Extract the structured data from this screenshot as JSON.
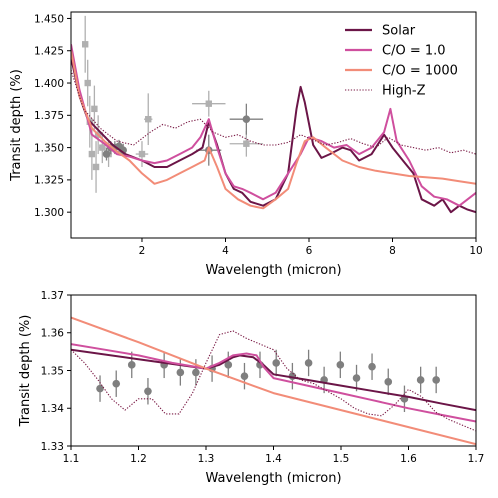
{
  "colors": {
    "solar": "#6b1547",
    "co1": "#cf4f9e",
    "co1000": "#f28c78",
    "highz": "#7a1a45",
    "data_top": "#b0b0b0",
    "data_top_dark": "#808080",
    "data_bottom": "#7f7f7f"
  },
  "chart_data": [
    {
      "type": "line",
      "panel": "top",
      "xlabel": "Wavelength (micron)",
      "ylabel": "Transit depth (%)",
      "xlim": [
        0.3,
        10
      ],
      "ylim": [
        1.28,
        1.455
      ],
      "xticks": [
        2,
        4,
        6,
        8,
        10
      ],
      "xtick_labels": [
        "2",
        "4",
        "6",
        "8",
        "10"
      ],
      "yticks": [
        1.3,
        1.325,
        1.35,
        1.375,
        1.4,
        1.425,
        1.45
      ],
      "ytick_labels": [
        "1.300",
        "1.325",
        "1.350",
        "1.375",
        "1.400",
        "1.425",
        "1.450"
      ],
      "legend_position": "upper-right",
      "legend": [
        "Solar",
        "C/O = 1.0",
        "C/O = 1000",
        "High-Z"
      ],
      "series": [
        {
          "name": "Solar",
          "color_key": "solar",
          "style": "solid",
          "x": [
            0.3,
            0.5,
            0.7,
            1.0,
            1.3,
            1.6,
            2.0,
            2.3,
            2.6,
            2.9,
            3.2,
            3.45,
            3.6,
            3.8,
            4.0,
            4.2,
            4.4,
            4.6,
            4.9,
            5.2,
            5.5,
            5.7,
            5.8,
            5.9,
            6.1,
            6.3,
            6.5,
            6.8,
            7.0,
            7.2,
            7.5,
            7.8,
            8.0,
            8.3,
            8.5,
            8.7,
            9.0,
            9.2,
            9.4,
            9.6,
            9.8,
            10.0
          ],
          "y": [
            1.42,
            1.39,
            1.372,
            1.362,
            1.352,
            1.345,
            1.34,
            1.335,
            1.335,
            1.34,
            1.345,
            1.35,
            1.37,
            1.352,
            1.33,
            1.318,
            1.315,
            1.308,
            1.305,
            1.31,
            1.33,
            1.38,
            1.397,
            1.385,
            1.352,
            1.342,
            1.345,
            1.35,
            1.348,
            1.34,
            1.345,
            1.36,
            1.35,
            1.338,
            1.33,
            1.31,
            1.305,
            1.31,
            1.3,
            1.305,
            1.302,
            1.3
          ]
        },
        {
          "name": "C/O = 1.0",
          "color_key": "co1",
          "style": "solid",
          "x": [
            0.3,
            0.5,
            0.8,
            1.1,
            1.4,
            1.7,
            2.0,
            2.3,
            2.6,
            2.9,
            3.2,
            3.4,
            3.6,
            3.8,
            4.0,
            4.2,
            4.4,
            4.6,
            4.9,
            5.2,
            5.5,
            5.8,
            6.0,
            6.3,
            6.6,
            6.9,
            7.2,
            7.5,
            7.8,
            7.95,
            8.1,
            8.4,
            8.7,
            9.0,
            9.3,
            9.6,
            9.8,
            10.0
          ],
          "y": [
            1.43,
            1.395,
            1.36,
            1.353,
            1.345,
            1.343,
            1.34,
            1.338,
            1.34,
            1.345,
            1.35,
            1.358,
            1.372,
            1.35,
            1.33,
            1.32,
            1.318,
            1.315,
            1.31,
            1.315,
            1.33,
            1.345,
            1.358,
            1.355,
            1.35,
            1.352,
            1.345,
            1.35,
            1.362,
            1.38,
            1.355,
            1.34,
            1.32,
            1.312,
            1.31,
            1.305,
            1.31,
            1.315
          ]
        },
        {
          "name": "C/O = 1000",
          "color_key": "co1000",
          "style": "solid",
          "x": [
            0.3,
            0.5,
            0.8,
            1.1,
            1.4,
            1.7,
            2.0,
            2.3,
            2.6,
            2.9,
            3.2,
            3.5,
            3.6,
            3.8,
            4.0,
            4.3,
            4.6,
            4.9,
            5.2,
            5.5,
            5.7,
            5.9,
            6.1,
            6.4,
            6.8,
            7.2,
            7.6,
            8.0,
            8.4,
            8.8,
            9.2,
            9.6,
            10.0
          ],
          "y": [
            1.425,
            1.39,
            1.365,
            1.355,
            1.347,
            1.34,
            1.33,
            1.322,
            1.325,
            1.33,
            1.335,
            1.34,
            1.35,
            1.335,
            1.318,
            1.31,
            1.305,
            1.303,
            1.31,
            1.318,
            1.338,
            1.355,
            1.358,
            1.35,
            1.34,
            1.335,
            1.332,
            1.33,
            1.328,
            1.327,
            1.326,
            1.324,
            1.322
          ]
        },
        {
          "name": "High-Z",
          "color_key": "highz",
          "style": "dotted",
          "x": [
            0.3,
            0.6,
            1.0,
            1.4,
            1.8,
            2.2,
            2.5,
            2.8,
            3.1,
            3.4,
            3.7,
            4.0,
            4.3,
            4.6,
            4.9,
            5.2,
            5.5,
            5.8,
            6.1,
            6.4,
            6.7,
            7.0,
            7.3,
            7.6,
            7.9,
            8.2,
            8.5,
            8.8,
            9.1,
            9.4,
            9.7,
            10.0
          ],
          "y": [
            1.41,
            1.38,
            1.365,
            1.355,
            1.352,
            1.362,
            1.368,
            1.365,
            1.37,
            1.372,
            1.362,
            1.358,
            1.36,
            1.355,
            1.352,
            1.352,
            1.354,
            1.36,
            1.356,
            1.352,
            1.354,
            1.357,
            1.353,
            1.35,
            1.358,
            1.352,
            1.35,
            1.348,
            1.35,
            1.346,
            1.348,
            1.345
          ]
        }
      ],
      "observations": [
        {
          "x": 0.64,
          "y": 1.43,
          "xerr": 0.06,
          "yerr": 0.022,
          "marker": "square",
          "color_key": "data_top"
        },
        {
          "x": 0.7,
          "y": 1.4,
          "xerr": 0.06,
          "yerr": 0.018,
          "marker": "square",
          "color_key": "data_top"
        },
        {
          "x": 0.75,
          "y": 1.37,
          "xerr": 0.06,
          "yerr": 0.02,
          "marker": "square",
          "color_key": "data_top"
        },
        {
          "x": 0.8,
          "y": 1.345,
          "xerr": 0.05,
          "yerr": 0.02,
          "marker": "square",
          "color_key": "data_top"
        },
        {
          "x": 0.86,
          "y": 1.38,
          "xerr": 0.06,
          "yerr": 0.018,
          "marker": "square",
          "color_key": "data_top"
        },
        {
          "x": 0.9,
          "y": 1.335,
          "xerr": 0.06,
          "yerr": 0.02,
          "marker": "square",
          "color_key": "data_top"
        },
        {
          "x": 0.95,
          "y": 1.36,
          "xerr": 0.06,
          "yerr": 0.015,
          "marker": "square",
          "color_key": "data_top"
        },
        {
          "x": 1.05,
          "y": 1.35,
          "xerr": 0.08,
          "yerr": 0.012,
          "marker": "square",
          "color_key": "data_top"
        },
        {
          "x": 1.2,
          "y": 1.345,
          "xerr": 0.08,
          "yerr": 0.01,
          "marker": "square",
          "color_key": "data_top"
        },
        {
          "x": 2.0,
          "y": 1.345,
          "xerr": 0.15,
          "yerr": 0.01,
          "marker": "square",
          "color_key": "data_top"
        },
        {
          "x": 2.15,
          "y": 1.372,
          "xerr": 0.1,
          "yerr": 0.02,
          "marker": "square",
          "color_key": "data_top"
        },
        {
          "x": 3.6,
          "y": 1.384,
          "xerr": 0.4,
          "yerr": 0.01,
          "marker": "square",
          "color_key": "data_top"
        },
        {
          "x": 4.5,
          "y": 1.353,
          "xerr": 0.4,
          "yerr": 0.01,
          "marker": "square",
          "color_key": "data_top"
        },
        {
          "x": 3.6,
          "y": 1.348,
          "xerr": 0.3,
          "yerr": 0.012,
          "marker": "circle",
          "color_key": "data_top_dark"
        },
        {
          "x": 4.5,
          "y": 1.372,
          "xerr": 0.4,
          "yerr": 0.012,
          "marker": "circle",
          "color_key": "data_top_dark"
        },
        {
          "x": 1.15,
          "y": 1.345,
          "xerr": 0.0,
          "yerr": 0.005,
          "marker": "circle",
          "color_key": "data_top_dark"
        },
        {
          "x": 1.25,
          "y": 1.35,
          "xerr": 0.0,
          "yerr": 0.005,
          "marker": "circle",
          "color_key": "data_top_dark"
        },
        {
          "x": 1.35,
          "y": 1.35,
          "xerr": 0.0,
          "yerr": 0.005,
          "marker": "circle",
          "color_key": "data_top_dark"
        },
        {
          "x": 1.45,
          "y": 1.351,
          "xerr": 0.0,
          "yerr": 0.005,
          "marker": "circle",
          "color_key": "data_top_dark"
        },
        {
          "x": 1.55,
          "y": 1.348,
          "xerr": 0.0,
          "yerr": 0.005,
          "marker": "circle",
          "color_key": "data_top_dark"
        }
      ]
    },
    {
      "type": "line",
      "panel": "bottom",
      "xlabel": "Wavelength (micron)",
      "ylabel": "Transit depth (%)",
      "xlim": [
        1.1,
        1.7
      ],
      "ylim": [
        1.33,
        1.37
      ],
      "xticks": [
        1.1,
        1.2,
        1.3,
        1.4,
        1.5,
        1.6,
        1.7
      ],
      "xtick_labels": [
        "1.1",
        "1.2",
        "1.3",
        "1.4",
        "1.5",
        "1.6",
        "1.7"
      ],
      "yticks": [
        1.33,
        1.34,
        1.35,
        1.36,
        1.37
      ],
      "ytick_labels": [
        "1.33",
        "1.34",
        "1.35",
        "1.36",
        "1.37"
      ],
      "series": [
        {
          "name": "Solar",
          "color_key": "solar",
          "style": "solid",
          "x": [
            1.1,
            1.2,
            1.3,
            1.32,
            1.34,
            1.35,
            1.37,
            1.385,
            1.4,
            1.45,
            1.5,
            1.55,
            1.6,
            1.65,
            1.7
          ],
          "y": [
            1.3555,
            1.353,
            1.3505,
            1.3515,
            1.3535,
            1.354,
            1.3535,
            1.3515,
            1.349,
            1.3475,
            1.346,
            1.3445,
            1.343,
            1.3412,
            1.3395
          ]
        },
        {
          "name": "C/O = 1.0",
          "color_key": "co1",
          "style": "solid",
          "x": [
            1.1,
            1.15,
            1.2,
            1.25,
            1.3,
            1.32,
            1.34,
            1.36,
            1.375,
            1.385,
            1.4,
            1.45,
            1.5,
            1.55,
            1.6,
            1.65,
            1.7
          ],
          "y": [
            1.357,
            1.3555,
            1.354,
            1.352,
            1.3505,
            1.352,
            1.354,
            1.3545,
            1.354,
            1.351,
            1.348,
            1.346,
            1.344,
            1.342,
            1.34,
            1.3382,
            1.3365
          ]
        },
        {
          "name": "C/O = 1000",
          "color_key": "co1000",
          "style": "solid",
          "x": [
            1.1,
            1.2,
            1.3,
            1.4,
            1.5,
            1.6,
            1.7
          ],
          "y": [
            1.364,
            1.3575,
            1.3505,
            1.344,
            1.3395,
            1.335,
            1.3305
          ]
        },
        {
          "name": "High-Z",
          "color_key": "highz",
          "style": "dotted",
          "x": [
            1.1,
            1.12,
            1.14,
            1.16,
            1.18,
            1.2,
            1.22,
            1.24,
            1.26,
            1.28,
            1.3,
            1.32,
            1.34,
            1.36,
            1.38,
            1.4,
            1.42,
            1.44,
            1.46,
            1.48,
            1.5,
            1.52,
            1.54,
            1.56,
            1.58,
            1.6,
            1.62,
            1.64,
            1.66,
            1.68,
            1.7
          ],
          "y": [
            1.3555,
            1.352,
            1.3475,
            1.3425,
            1.3395,
            1.3425,
            1.3425,
            1.3385,
            1.3385,
            1.344,
            1.352,
            1.3595,
            1.3605,
            1.3585,
            1.357,
            1.3555,
            1.3505,
            1.3475,
            1.3465,
            1.3445,
            1.3425,
            1.34,
            1.3385,
            1.338,
            1.341,
            1.345,
            1.343,
            1.339,
            1.337,
            1.3355,
            1.334
          ]
        }
      ],
      "observations": [
        {
          "x": 1.143,
          "y": 1.3452,
          "yerr": 0.0035
        },
        {
          "x": 1.167,
          "y": 1.3465,
          "yerr": 0.0035
        },
        {
          "x": 1.19,
          "y": 1.3515,
          "yerr": 0.0035
        },
        {
          "x": 1.214,
          "y": 1.3445,
          "yerr": 0.0035
        },
        {
          "x": 1.238,
          "y": 1.3515,
          "yerr": 0.0035
        },
        {
          "x": 1.262,
          "y": 1.3495,
          "yerr": 0.0035
        },
        {
          "x": 1.285,
          "y": 1.3495,
          "yerr": 0.0035
        },
        {
          "x": 1.309,
          "y": 1.3505,
          "yerr": 0.0035
        },
        {
          "x": 1.333,
          "y": 1.3515,
          "yerr": 0.0035
        },
        {
          "x": 1.357,
          "y": 1.3485,
          "yerr": 0.0035
        },
        {
          "x": 1.38,
          "y": 1.3515,
          "yerr": 0.0035
        },
        {
          "x": 1.404,
          "y": 1.352,
          "yerr": 0.0035
        },
        {
          "x": 1.428,
          "y": 1.3485,
          "yerr": 0.0035
        },
        {
          "x": 1.452,
          "y": 1.352,
          "yerr": 0.0035
        },
        {
          "x": 1.475,
          "y": 1.3475,
          "yerr": 0.0035
        },
        {
          "x": 1.499,
          "y": 1.3515,
          "yerr": 0.0035
        },
        {
          "x": 1.523,
          "y": 1.348,
          "yerr": 0.0035
        },
        {
          "x": 1.546,
          "y": 1.351,
          "yerr": 0.0035
        },
        {
          "x": 1.57,
          "y": 1.347,
          "yerr": 0.0035
        },
        {
          "x": 1.594,
          "y": 1.3425,
          "yerr": 0.0035
        },
        {
          "x": 1.618,
          "y": 1.3475,
          "yerr": 0.0035
        },
        {
          "x": 1.641,
          "y": 1.3475,
          "yerr": 0.0035
        }
      ]
    }
  ]
}
